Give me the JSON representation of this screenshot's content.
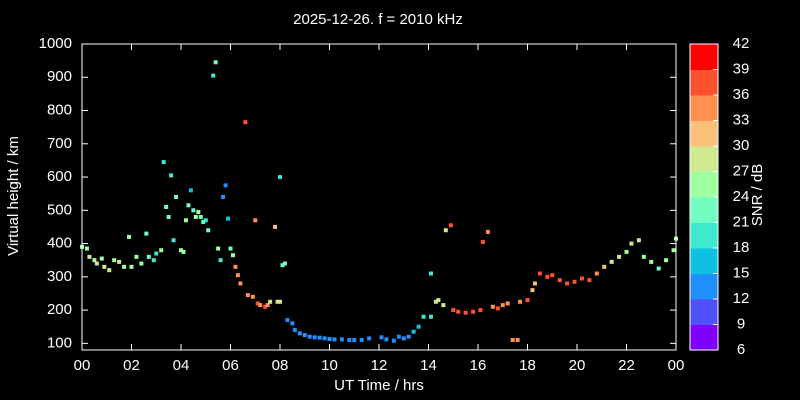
{
  "chart_data": {
    "type": "scatter",
    "title": "2025-12-26. f = 2010 kHz",
    "x_label": "UT Time / hrs",
    "y_label": "Virtual height / km",
    "colorbar_label": "SNR / dB",
    "xlim": [
      0,
      24
    ],
    "ylim": [
      80,
      1000
    ],
    "xticks": [
      {
        "value": 0,
        "label": "00"
      },
      {
        "value": 2,
        "label": "02"
      },
      {
        "value": 4,
        "label": "04"
      },
      {
        "value": 6,
        "label": "06"
      },
      {
        "value": 8,
        "label": "08"
      },
      10,
      12,
      14,
      16,
      18,
      20,
      22,
      {
        "value": 24,
        "label": "00"
      }
    ],
    "yticks": [
      100,
      200,
      300,
      400,
      500,
      600,
      700,
      800,
      900,
      1000
    ],
    "clim": [
      6,
      42
    ],
    "cticks": [
      6,
      9,
      12,
      15,
      18,
      21,
      24,
      27,
      30,
      33,
      36,
      39,
      42
    ],
    "colorscale": [
      "#8000ff",
      "#5050ff",
      "#2090ff",
      "#10c0e0",
      "#40e8d0",
      "#70ffc0",
      "#a0ffa0",
      "#d0e890",
      "#f8c078",
      "#ff9050",
      "#ff5030",
      "#ff0000"
    ],
    "points": {
      "x": [
        0.0,
        0.2,
        0.3,
        0.5,
        0.6,
        0.8,
        0.9,
        1.1,
        1.3,
        1.5,
        1.7,
        1.9,
        2.0,
        2.2,
        2.4,
        2.6,
        2.7,
        2.9,
        3.0,
        3.2,
        3.3,
        3.4,
        3.5,
        3.6,
        3.7,
        3.8,
        4.0,
        4.1,
        4.2,
        4.3,
        4.4,
        4.5,
        4.6,
        4.7,
        4.8,
        4.9,
        5.0,
        5.1,
        5.3,
        5.4,
        5.5,
        5.6,
        5.7,
        5.8,
        5.9,
        6.0,
        6.1,
        6.2,
        6.3,
        6.4,
        6.6,
        6.7,
        6.9,
        7.0,
        7.1,
        7.2,
        7.4,
        7.5,
        7.6,
        7.8,
        7.9,
        8.0,
        8.0,
        8.1,
        8.2,
        8.3,
        8.5,
        8.6,
        8.8,
        9.0,
        9.2,
        9.4,
        9.6,
        9.8,
        10.0,
        10.2,
        10.5,
        10.8,
        11.0,
        11.3,
        11.6,
        12.1,
        12.3,
        12.6,
        12.8,
        13.0,
        13.2,
        13.4,
        13.6,
        13.8,
        14.1,
        14.1,
        14.3,
        14.4,
        14.6,
        14.7,
        14.9,
        15.0,
        15.2,
        15.5,
        15.8,
        16.1,
        16.2,
        16.4,
        16.6,
        16.8,
        17.0,
        17.2,
        17.4,
        17.6,
        17.7,
        18.0,
        18.2,
        18.3,
        18.5,
        18.8,
        19.0,
        19.3,
        19.6,
        19.9,
        20.2,
        20.5,
        20.8,
        21.1,
        21.4,
        21.7,
        22.0,
        22.2,
        22.5,
        22.7,
        23.0,
        23.3,
        23.6,
        23.9,
        24.0
      ],
      "y": [
        390,
        385,
        360,
        350,
        340,
        355,
        330,
        320,
        350,
        345,
        330,
        420,
        330,
        360,
        340,
        430,
        360,
        350,
        370,
        380,
        645,
        510,
        480,
        605,
        410,
        540,
        380,
        375,
        470,
        515,
        560,
        500,
        480,
        495,
        480,
        465,
        470,
        440,
        905,
        945,
        385,
        350,
        540,
        575,
        475,
        385,
        365,
        330,
        305,
        280,
        765,
        245,
        240,
        470,
        220,
        215,
        210,
        215,
        225,
        450,
        225,
        225,
        600,
        335,
        340,
        170,
        160,
        140,
        130,
        125,
        120,
        118,
        117,
        115,
        113,
        112,
        112,
        110,
        110,
        110,
        115,
        118,
        112,
        108,
        120,
        115,
        120,
        135,
        150,
        180,
        180,
        310,
        225,
        230,
        215,
        440,
        455,
        200,
        195,
        192,
        195,
        200,
        405,
        435,
        210,
        205,
        215,
        220,
        110,
        110,
        225,
        230,
        260,
        280,
        310,
        300,
        305,
        290,
        280,
        285,
        295,
        290,
        310,
        330,
        345,
        360,
        375,
        400,
        410,
        360,
        345,
        325,
        350,
        380,
        415
      ],
      "snr": [
        25,
        25,
        27,
        26,
        27,
        26,
        27,
        27,
        26,
        27,
        25,
        25,
        24,
        24,
        24,
        22,
        23,
        20,
        20,
        24,
        19,
        23,
        22,
        19,
        18,
        21,
        24,
        25,
        24,
        22,
        16,
        23,
        24,
        25,
        22,
        22,
        20,
        21,
        19,
        22,
        24,
        19,
        14,
        14,
        17,
        22,
        26,
        34,
        34,
        35,
        37,
        35,
        33,
        33,
        36,
        35,
        36,
        33,
        28,
        31,
        28,
        27,
        20,
        22,
        21,
        14,
        13,
        13,
        13,
        12,
        13,
        12,
        12,
        13,
        12,
        12,
        13,
        12,
        13,
        12,
        13,
        12,
        12,
        12,
        12,
        14,
        13,
        17,
        17,
        19,
        18,
        19,
        27,
        27,
        27,
        27,
        37,
        37,
        38,
        37,
        36,
        37,
        37,
        34,
        34,
        36,
        35,
        35,
        35,
        34,
        35,
        37,
        31,
        32,
        37,
        37,
        37,
        36,
        38,
        37,
        36,
        36,
        35,
        31,
        29,
        28,
        26,
        28,
        29,
        25,
        24,
        23,
        24,
        26,
        25
      ]
    }
  }
}
